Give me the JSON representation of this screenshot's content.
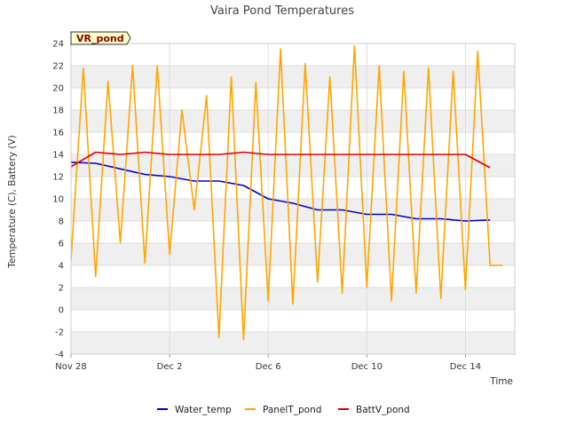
{
  "chart_data": {
    "type": "line",
    "title": "Vaira Pond Temperatures",
    "xlabel": "Time",
    "ylabel": "Temperature (C), Battery (V)",
    "badge": "VR_pond",
    "ylim": [
      -4,
      24
    ],
    "yticks": [
      -4,
      -2,
      0,
      2,
      4,
      6,
      8,
      10,
      12,
      14,
      16,
      18,
      20,
      22,
      24
    ],
    "xlim": [
      "Nov 28",
      "Dec 16"
    ],
    "xticks": [
      "Nov 28",
      "Dec 2",
      "Dec 6",
      "Dec 10",
      "Dec 14"
    ],
    "grid": true,
    "legend_position": "bottom",
    "series": [
      {
        "name": "Water_temp",
        "color": "#0000cc",
        "x": [
          "Nov 28",
          "Nov 29",
          "Nov 30",
          "Dec 1",
          "Dec 2",
          "Dec 3",
          "Dec 4",
          "Dec 5",
          "Dec 6",
          "Dec 7",
          "Dec 8",
          "Dec 9",
          "Dec 10",
          "Dec 11",
          "Dec 12",
          "Dec 13",
          "Dec 14",
          "Dec 15"
        ],
        "y": [
          13.3,
          13.2,
          12.7,
          12.2,
          12.0,
          11.6,
          11.6,
          11.2,
          10.0,
          9.6,
          9.0,
          9.0,
          8.6,
          8.6,
          8.2,
          8.2,
          8.0,
          8.1
        ]
      },
      {
        "name": "PanelT_pond",
        "color": "#ffa500",
        "x": [
          "Nov 28",
          "Nov 28 12:00",
          "Nov 29",
          "Nov 29 12:00",
          "Nov 30",
          "Nov 30 12:00",
          "Dec 1",
          "Dec 1 12:00",
          "Dec 2",
          "Dec 2 12:00",
          "Dec 3",
          "Dec 3 12:00",
          "Dec 4",
          "Dec 4 12:00",
          "Dec 5",
          "Dec 5 12:00",
          "Dec 6",
          "Dec 6 12:00",
          "Dec 7",
          "Dec 7 12:00",
          "Dec 8",
          "Dec 8 12:00",
          "Dec 9",
          "Dec 9 12:00",
          "Dec 10",
          "Dec 10 12:00",
          "Dec 11",
          "Dec 11 12:00",
          "Dec 12",
          "Dec 12 12:00",
          "Dec 13",
          "Dec 13 12:00",
          "Dec 14",
          "Dec 14 12:00",
          "Dec 15",
          "Dec 15 12:00"
        ],
        "y": [
          4.5,
          21.8,
          3.0,
          20.6,
          6.0,
          22.0,
          4.2,
          22.0,
          5.0,
          18.0,
          9.0,
          19.3,
          -2.5,
          21.0,
          -2.7,
          20.5,
          0.8,
          23.5,
          0.5,
          22.2,
          2.5,
          21.0,
          1.5,
          23.8,
          2.0,
          22.0,
          0.8,
          21.5,
          1.5,
          21.8,
          1.0,
          21.5,
          1.8,
          23.3,
          4.0,
          4.0
        ]
      },
      {
        "name": "BattV_pond",
        "color": "#dd0000",
        "x": [
          "Nov 28",
          "Nov 29",
          "Nov 30",
          "Dec 1",
          "Dec 2",
          "Dec 3",
          "Dec 4",
          "Dec 5",
          "Dec 6",
          "Dec 7",
          "Dec 8",
          "Dec 9",
          "Dec 10",
          "Dec 11",
          "Dec 12",
          "Dec 13",
          "Dec 14",
          "Dec 15"
        ],
        "y": [
          12.9,
          14.2,
          14.0,
          14.2,
          14.0,
          14.0,
          14.0,
          14.2,
          14.0,
          14.0,
          14.0,
          14.0,
          14.0,
          14.0,
          14.0,
          14.0,
          14.0,
          12.8
        ]
      }
    ]
  }
}
